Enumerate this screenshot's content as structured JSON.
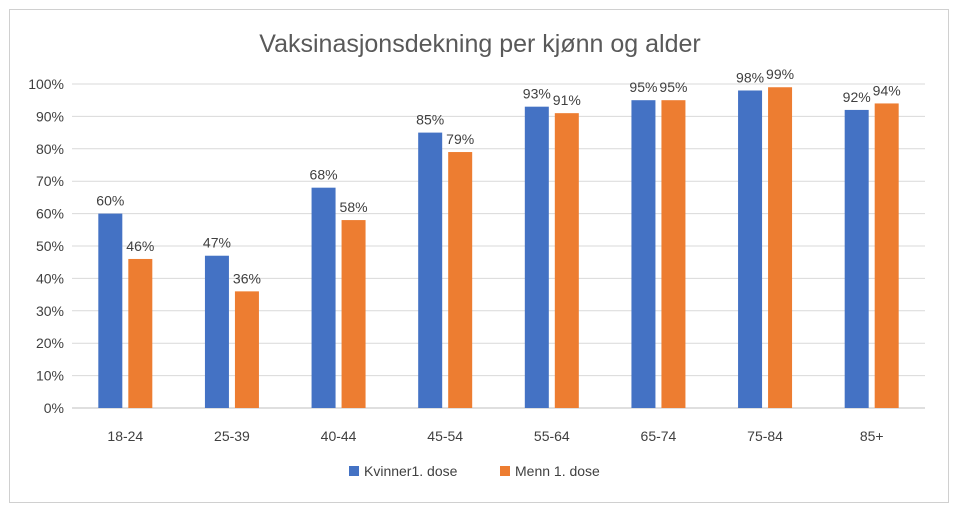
{
  "chart_data": {
    "type": "bar",
    "title": "Vaksinasjonsdekning per kjønn og alder",
    "categories": [
      "18-24",
      "25-39",
      "40-44",
      "45-54",
      "55-64",
      "65-74",
      "75-84",
      "85+"
    ],
    "series": [
      {
        "name": "Kvinner1. dose",
        "color": "#4472c4",
        "values": [
          60,
          47,
          68,
          85,
          93,
          95,
          98,
          92
        ],
        "labels": [
          "60%",
          "47%",
          "68%",
          "85%",
          "93%",
          "95%",
          "98%",
          "92%"
        ]
      },
      {
        "name": "Menn 1. dose",
        "color": "#ed7d31",
        "values": [
          46,
          36,
          58,
          79,
          91,
          95,
          99,
          94
        ],
        "labels": [
          "46%",
          "36%",
          "58%",
          "79%",
          "91%",
          "95%",
          "99%",
          "94%"
        ]
      }
    ],
    "y_ticks": [
      "0%",
      "10%",
      "20%",
      "30%",
      "40%",
      "50%",
      "60%",
      "70%",
      "80%",
      "90%",
      "100%"
    ],
    "ylim": [
      0,
      100
    ],
    "grid": true,
    "legend_position": "bottom"
  }
}
